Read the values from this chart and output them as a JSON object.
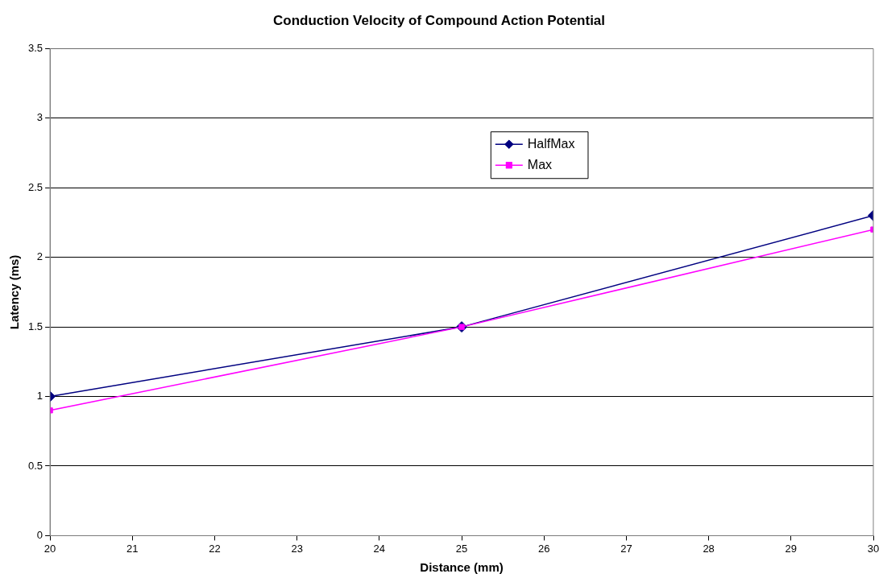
{
  "chart_data": {
    "type": "line",
    "title": "Conduction Velocity of Compound Action Potential",
    "xlabel": "Distance (mm)",
    "ylabel": "Latency (ms)",
    "x": [
      20,
      25,
      30
    ],
    "series": [
      {
        "name": "HalfMax",
        "color": "#000080",
        "marker": "diamond",
        "values": [
          1.0,
          1.5,
          2.3
        ]
      },
      {
        "name": "Max",
        "color": "#ff00ff",
        "marker": "square",
        "values": [
          0.9,
          1.5,
          2.2
        ]
      }
    ],
    "xlim": [
      20,
      30
    ],
    "xticks": [
      20,
      21,
      22,
      23,
      24,
      25,
      26,
      27,
      28,
      29,
      30
    ],
    "ylim": [
      0,
      3.5
    ],
    "yticks": [
      0,
      0.5,
      1,
      1.5,
      2,
      2.5,
      3,
      3.5
    ],
    "grid": "y",
    "legend": "top right",
    "line_style": "solid"
  }
}
